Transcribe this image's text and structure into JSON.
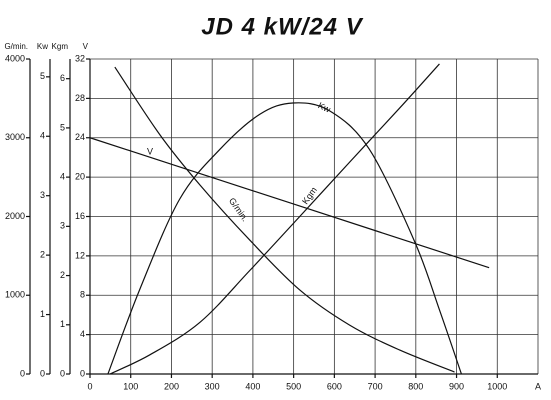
{
  "chart_data": {
    "type": "line",
    "title": "JD 4 kW/24 V",
    "xlabel": "A",
    "xlim": [
      0,
      1100
    ],
    "xticks": [
      0,
      100,
      200,
      300,
      400,
      500,
      600,
      700,
      800,
      900,
      1000
    ],
    "axes": [
      {
        "label": "G/min.",
        "ylim": [
          0,
          4000
        ],
        "yticks": [
          0,
          1000,
          2000,
          3000,
          4000
        ]
      },
      {
        "label": "Kw",
        "ylim": [
          0,
          5.3
        ],
        "yticks": [
          0,
          1,
          2,
          3,
          4,
          5
        ]
      },
      {
        "label": "Kgm",
        "ylim": [
          0,
          6.4
        ],
        "yticks": [
          0,
          1,
          2,
          3,
          4,
          5,
          6
        ]
      },
      {
        "label": "V",
        "ylim": [
          0,
          32
        ],
        "yticks": [
          0,
          4,
          8,
          12,
          16,
          20,
          24,
          28,
          32
        ]
      }
    ],
    "grid": true,
    "series": [
      {
        "name": "V",
        "axis": 3,
        "color": "#111111",
        "x": [
          0,
          980
        ],
        "values": [
          24,
          10.8
        ]
      },
      {
        "name": "G/min.",
        "axis": 0,
        "color": "#111111",
        "x": [
          61,
          172,
          270,
          392,
          515,
          637,
          760,
          895
        ],
        "values": [
          3898,
          3035,
          2400,
          1702,
          1067,
          622,
          305,
          25
        ]
      },
      {
        "name": "Kgm",
        "axis": 2,
        "color": "#111111",
        "x": [
          49,
          147,
          270,
          392,
          515,
          637,
          760,
          858
        ],
        "values": [
          0,
          0.39,
          1.05,
          2.1,
          3.2,
          4.3,
          5.4,
          6.3
        ]
      },
      {
        "name": "Kw",
        "axis": 1,
        "color": "#111111",
        "x": [
          44,
          122,
          220,
          319,
          417,
          498,
          588,
          686,
          797,
          858,
          912
        ],
        "values": [
          0,
          1.42,
          2.94,
          3.78,
          4.37,
          4.56,
          4.43,
          3.78,
          2.23,
          1.08,
          0
        ]
      }
    ]
  }
}
